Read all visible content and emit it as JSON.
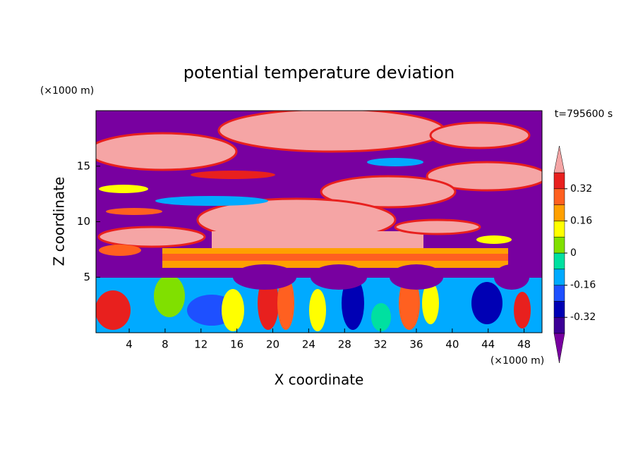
{
  "chart_data": {
    "type": "contour",
    "title": "potential temperature deviation",
    "x_label": "X coordinate",
    "y_label": "Z coordinate",
    "x_unit": "(×1000 m)",
    "y_unit": "(×1000 m)",
    "annotation": "t=795600 s",
    "xlim": [
      0.3,
      50
    ],
    "xticks": [
      4,
      8,
      12,
      16,
      20,
      24,
      28,
      32,
      36,
      40,
      44,
      48
    ],
    "ylim": [
      0,
      20
    ],
    "yticks": [
      5,
      10,
      15
    ],
    "colorbar": {
      "clim": [
        -0.4,
        0.4
      ],
      "ticks": [
        -0.32,
        -0.16,
        0,
        0.16,
        0.32
      ],
      "colors": [
        "#3c0096",
        "#0000b4",
        "#1e50ff",
        "#00aaff",
        "#00e0a0",
        "#80e000",
        "#ffff00",
        "#ffa000",
        "#ff6020",
        "#e8201e"
      ],
      "under_color": "#7800a0",
      "over_color": "#f5a5a5"
    }
  }
}
